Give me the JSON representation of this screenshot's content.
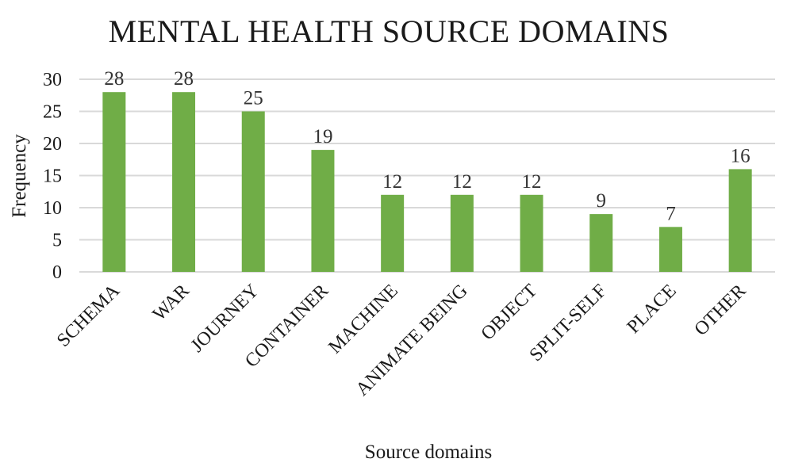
{
  "chart_data": {
    "type": "bar",
    "title": "MENTAL HEALTH SOURCE DOMAINS",
    "xlabel": "Source domains",
    "ylabel": "Frequency",
    "categories": [
      "SCHEMA",
      "WAR",
      "JOURNEY",
      "CONTAINER",
      "MACHINE",
      "ANIMATE BEING",
      "OBJECT",
      "SPLIT-SELF",
      "PLACE",
      "OTHER"
    ],
    "values": [
      28,
      28,
      25,
      19,
      12,
      12,
      12,
      9,
      7,
      16
    ],
    "ylim": [
      0,
      30
    ],
    "yticks": [
      0,
      5,
      10,
      15,
      20,
      25,
      30
    ],
    "grid": true,
    "legend": "none",
    "bar_color": "#70AD47",
    "grid_color": "#D9D9D9"
  }
}
